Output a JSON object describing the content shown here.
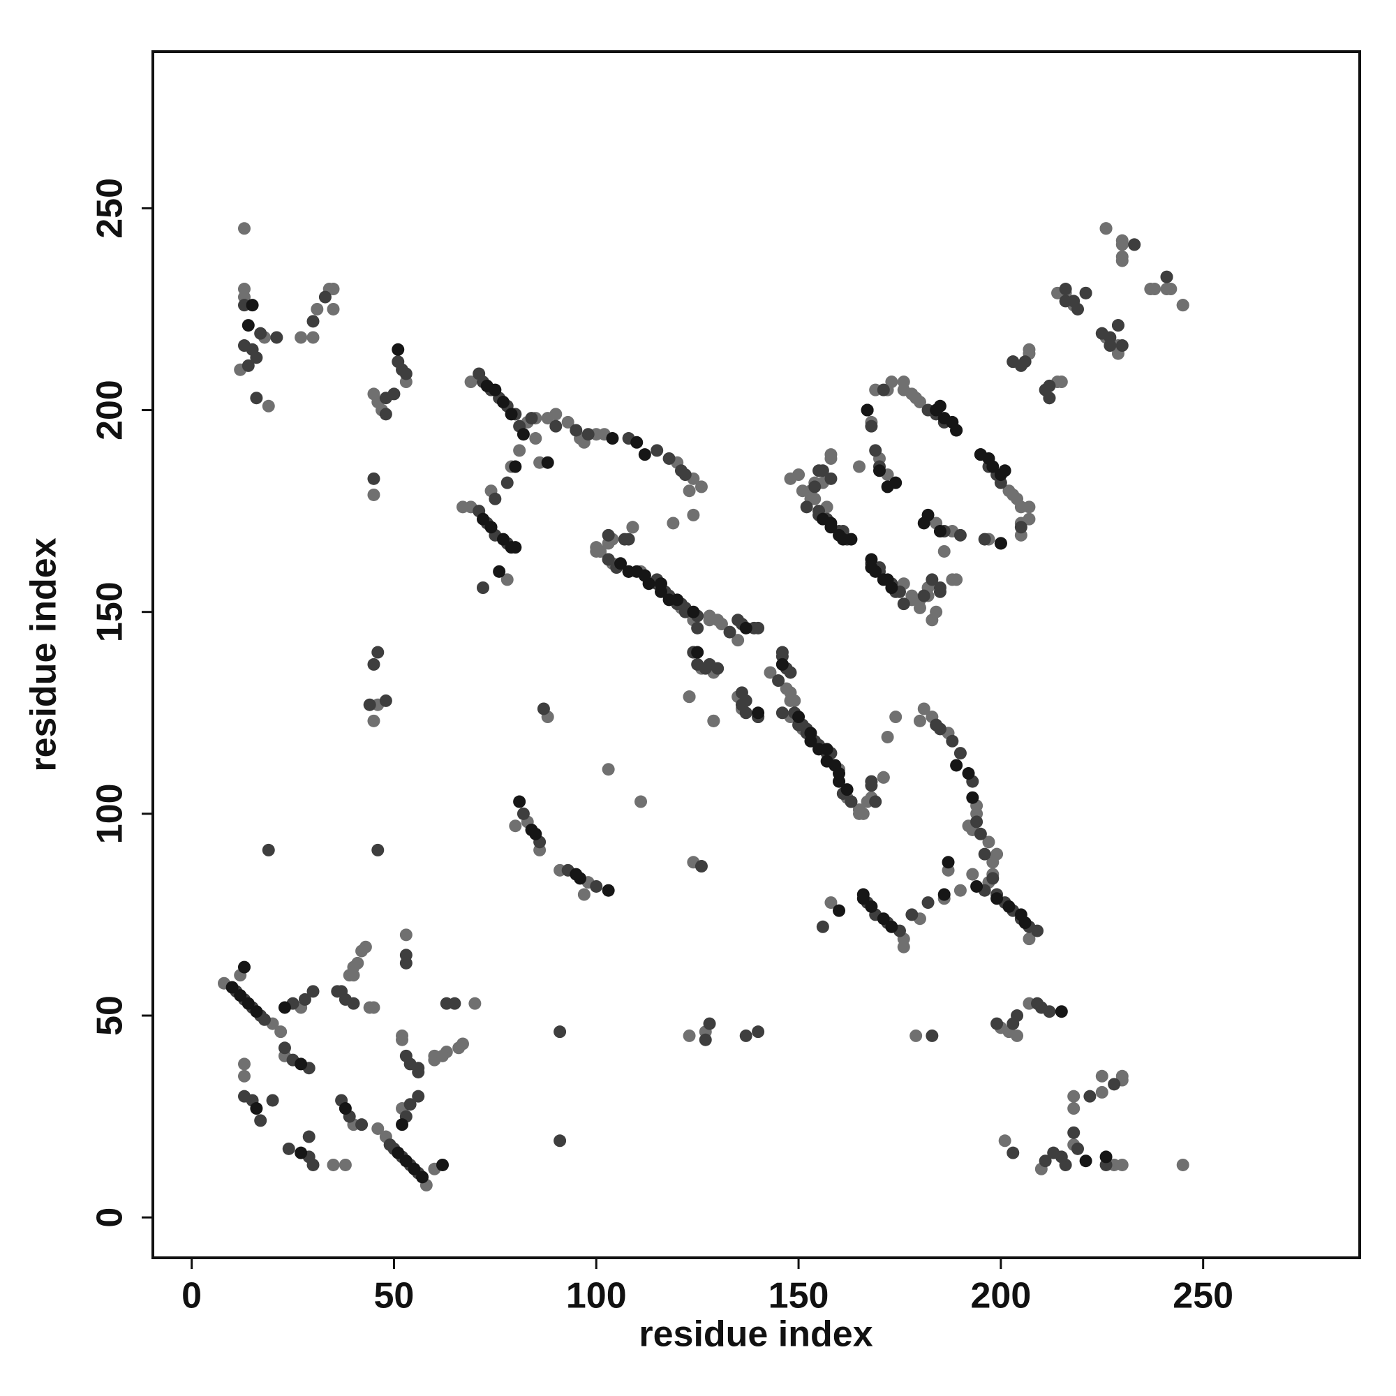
{
  "chart_data": {
    "type": "scatter",
    "xlabel": "residue index",
    "ylabel": "residue index",
    "xlim": [
      -9.6,
      288.7
    ],
    "ylim": [
      -10,
      288.8
    ],
    "xticks": [
      0,
      50,
      100,
      150,
      200,
      250
    ],
    "yticks": [
      0,
      50,
      100,
      150,
      200,
      250
    ],
    "series": [
      {
        "color": "#707070",
        "x": [
          13,
          13,
          13,
          12,
          18,
          19,
          27,
          30,
          31,
          34,
          35,
          35,
          53,
          46,
          45,
          47,
          45,
          69,
          83,
          85,
          88,
          90,
          93,
          96,
          100,
          102,
          120,
          124,
          126,
          123,
          85,
          86,
          81,
          97,
          124,
          67,
          69,
          74,
          79,
          78,
          100,
          101,
          104,
          128,
          130,
          135,
          126,
          123,
          129,
          135,
          147,
          149,
          148,
          151,
          160,
          165,
          165,
          167,
          171,
          172,
          104,
          109,
          103,
          150,
          156,
          158,
          153,
          157,
          165,
          168,
          169,
          173,
          176,
          178,
          180,
          178,
          180,
          182,
          180,
          183,
          188,
          184,
          188,
          203,
          205,
          205,
          207,
          212,
          214,
          216,
          221,
          226,
          229,
          226,
          230,
          230,
          233,
          238,
          242,
          245,
          45,
          88,
          46,
          8,
          20,
          22,
          23,
          27,
          12,
          13,
          13,
          39,
          41,
          43,
          45,
          44,
          40,
          42,
          53,
          80,
          86,
          83,
          40,
          245,
          230,
          228,
          210,
          218,
          201,
          218,
          218,
          225,
          230,
          230,
          225,
          207,
          202,
          204,
          200,
          179,
          207,
          197,
          198,
          198,
          199,
          197,
          193,
          194,
          194,
          187,
          183,
          181,
          180,
          193,
          187,
          190,
          192,
          174,
          176,
          176,
          180,
          186,
          158,
          166,
          165,
          162,
          148,
          148,
          143,
          136,
          129,
          123,
          129,
          131,
          128,
          124,
          121,
          111,
          101,
          100,
          103,
          109,
          119,
          168,
          171,
          111,
          184,
          182,
          189,
          178,
          176,
          186,
          197,
          205,
          207,
          207,
          204,
          202,
          154,
          153,
          154,
          151,
          148,
          158,
          172,
          170,
          179,
          176,
          172,
          215,
          203,
          207,
          229,
          229,
          218,
          214,
          245,
          241,
          237,
          241,
          230,
          230,
          226,
          123,
          124,
          127,
          58,
          48,
          46,
          40,
          52,
          60,
          38,
          35,
          60,
          63,
          67,
          52,
          52,
          60,
          66,
          70,
          97,
          91,
          98,
          62
        ],
        "y": [
          245,
          230,
          228,
          210,
          218,
          201,
          218,
          218,
          225,
          230,
          230,
          225,
          207,
          202,
          204,
          200,
          179,
          207,
          197,
          198,
          198,
          199,
          197,
          193,
          194,
          194,
          187,
          183,
          181,
          180,
          193,
          187,
          190,
          192,
          174,
          176,
          176,
          180,
          186,
          158,
          166,
          165,
          162,
          148,
          148,
          143,
          136,
          129,
          123,
          129,
          131,
          128,
          124,
          121,
          111,
          101,
          100,
          103,
          109,
          119,
          168,
          171,
          111,
          184,
          182,
          189,
          178,
          176,
          186,
          197,
          205,
          207,
          207,
          204,
          202,
          154,
          153,
          154,
          151,
          148,
          158,
          172,
          170,
          179,
          176,
          172,
          215,
          203,
          207,
          229,
          229,
          218,
          214,
          245,
          241,
          237,
          241,
          230,
          230,
          226,
          123,
          124,
          127,
          58,
          48,
          46,
          40,
          52,
          60,
          38,
          35,
          60,
          63,
          67,
          52,
          52,
          60,
          66,
          70,
          97,
          91,
          98,
          62,
          13,
          13,
          13,
          12,
          18,
          19,
          27,
          30,
          31,
          34,
          35,
          35,
          53,
          46,
          45,
          47,
          45,
          69,
          83,
          85,
          88,
          90,
          93,
          96,
          100,
          102,
          120,
          124,
          126,
          123,
          85,
          86,
          81,
          97,
          124,
          67,
          69,
          74,
          79,
          78,
          100,
          101,
          104,
          128,
          130,
          135,
          126,
          123,
          129,
          135,
          147,
          149,
          148,
          151,
          160,
          165,
          165,
          167,
          171,
          172,
          104,
          109,
          103,
          150,
          156,
          158,
          153,
          157,
          165,
          168,
          169,
          173,
          176,
          178,
          180,
          178,
          180,
          182,
          180,
          183,
          188,
          184,
          188,
          203,
          205,
          205,
          207,
          212,
          214,
          216,
          221,
          226,
          229,
          226,
          230,
          230,
          233,
          238,
          242,
          245,
          45,
          88,
          46,
          8,
          20,
          22,
          23,
          27,
          12,
          13,
          13,
          39,
          41,
          43,
          45,
          44,
          40,
          42,
          53,
          80,
          86,
          83,
          40
        ]
      },
      {
        "color": "#3e3e3e",
        "x": [
          13,
          13,
          15,
          16,
          14,
          17,
          16,
          21,
          30,
          33,
          51,
          52,
          53,
          50,
          48,
          48,
          45,
          71,
          72,
          74,
          76,
          78,
          80,
          81,
          84,
          90,
          95,
          98,
          108,
          115,
          118,
          121,
          122,
          71,
          73,
          75,
          78,
          75,
          78,
          103,
          108,
          112,
          115,
          118,
          121,
          122,
          125,
          133,
          136,
          139,
          124,
          128,
          130,
          136,
          137,
          140,
          146,
          148,
          146,
          150,
          152,
          155,
          158,
          161,
          163,
          168,
          103,
          108,
          72,
          154,
          156,
          155,
          157,
          160,
          171,
          182,
          189,
          169,
          168,
          170,
          174,
          176,
          183,
          185,
          186,
          197,
          199,
          196,
          203,
          206,
          211,
          218,
          219,
          227,
          230,
          229,
          241,
          46,
          45,
          44,
          48,
          87,
          19,
          46,
          11,
          13,
          15,
          17,
          18,
          23,
          25,
          29,
          25,
          28,
          30,
          36,
          38,
          37,
          40,
          53,
          53,
          82,
          86,
          13,
          15,
          17,
          20,
          226,
          216,
          215,
          213,
          211,
          219,
          203,
          218,
          222,
          228,
          212,
          210,
          209,
          204,
          203,
          199,
          183,
          209,
          207,
          205,
          203,
          201,
          199,
          196,
          198,
          196,
          195,
          194,
          193,
          190,
          188,
          185,
          184,
          175,
          172,
          169,
          167,
          178,
          182,
          163,
          160,
          159,
          157,
          154,
          152,
          151,
          149,
          145,
          147,
          146,
          140,
          137,
          136,
          127,
          125,
          124,
          140,
          135,
          125,
          122,
          120,
          117,
          115,
          105,
          103,
          107,
          169,
          168,
          156,
          181,
          185,
          175,
          173,
          170,
          205,
          200,
          195,
          190,
          162,
          161,
          155,
          152,
          158,
          155,
          170,
          186,
          184,
          168,
          212,
          212,
          205,
          227,
          225,
          216,
          216,
          221,
          233,
          140,
          137,
          127,
          128,
          126,
          91,
          91,
          56,
          54,
          52,
          50,
          49,
          42,
          39,
          37,
          53,
          54,
          56,
          56,
          54,
          56,
          53,
          63,
          65,
          100,
          93,
          30,
          29,
          24,
          29
        ],
        "y": [
          226,
          216,
          215,
          213,
          211,
          219,
          203,
          218,
          222,
          228,
          212,
          210,
          209,
          204,
          203,
          199,
          183,
          209,
          207,
          205,
          203,
          201,
          199,
          196,
          198,
          196,
          195,
          194,
          193,
          190,
          188,
          185,
          184,
          175,
          172,
          169,
          167,
          178,
          182,
          163,
          160,
          159,
          157,
          154,
          152,
          151,
          149,
          145,
          147,
          146,
          140,
          137,
          136,
          127,
          125,
          124,
          140,
          135,
          125,
          122,
          120,
          117,
          115,
          105,
          103,
          107,
          169,
          168,
          156,
          181,
          185,
          175,
          173,
          170,
          205,
          200,
          195,
          190,
          162,
          161,
          155,
          152,
          158,
          155,
          170,
          186,
          184,
          168,
          212,
          212,
          205,
          227,
          225,
          216,
          216,
          221,
          233,
          140,
          137,
          127,
          128,
          126,
          91,
          91,
          56,
          54,
          52,
          50,
          49,
          42,
          39,
          37,
          53,
          54,
          56,
          56,
          54,
          56,
          53,
          63,
          65,
          100,
          93,
          30,
          29,
          24,
          29,
          13,
          13,
          15,
          16,
          14,
          17,
          16,
          21,
          30,
          33,
          51,
          52,
          53,
          50,
          48,
          48,
          45,
          71,
          72,
          74,
          76,
          78,
          80,
          81,
          84,
          90,
          95,
          98,
          108,
          115,
          118,
          121,
          122,
          71,
          73,
          75,
          78,
          75,
          78,
          103,
          108,
          112,
          115,
          118,
          121,
          122,
          125,
          133,
          136,
          139,
          124,
          128,
          130,
          136,
          137,
          140,
          146,
          148,
          146,
          150,
          152,
          155,
          158,
          161,
          163,
          168,
          103,
          108,
          72,
          154,
          156,
          155,
          157,
          160,
          171,
          182,
          189,
          169,
          168,
          170,
          174,
          176,
          183,
          185,
          186,
          197,
          199,
          196,
          203,
          206,
          211,
          218,
          219,
          227,
          230,
          229,
          241,
          46,
          45,
          44,
          48,
          87,
          19,
          46,
          11,
          13,
          15,
          17,
          18,
          23,
          25,
          29,
          25,
          28,
          30,
          36,
          38,
          37,
          40,
          53,
          53,
          82,
          86,
          13,
          15,
          17,
          20
        ]
      },
      {
        "color": "#161616",
        "x": [
          51,
          15,
          14,
          73,
          75,
          77,
          79,
          82,
          104,
          110,
          112,
          72,
          74,
          77,
          79,
          80,
          106,
          110,
          113,
          116,
          120,
          124,
          125,
          153,
          157,
          159,
          160,
          167,
          170,
          172,
          184,
          186,
          188,
          169,
          171,
          173,
          158,
          161,
          163,
          195,
          201,
          200,
          182,
          88,
          80,
          76,
          146,
          10,
          12,
          14,
          16,
          23,
          27,
          81,
          84,
          85,
          13,
          16,
          215,
          226,
          221,
          206,
          205,
          202,
          199,
          194,
          193,
          192,
          189,
          173,
          171,
          168,
          166,
          166,
          162,
          160,
          157,
          155,
          153,
          150,
          140,
          118,
          116,
          112,
          108,
          200,
          185,
          181,
          200,
          198,
          197,
          160,
          158,
          156,
          172,
          168,
          168,
          189,
          185,
          167,
          174,
          187,
          186,
          160,
          137,
          57,
          55,
          53,
          51,
          52,
          38,
          103,
          96,
          95,
          62,
          27
        ],
        "y": [
          215,
          226,
          221,
          206,
          205,
          202,
          199,
          194,
          193,
          192,
          189,
          173,
          171,
          168,
          166,
          166,
          162,
          160,
          157,
          155,
          153,
          150,
          140,
          118,
          116,
          112,
          108,
          200,
          185,
          181,
          200,
          198,
          197,
          160,
          158,
          156,
          172,
          168,
          168,
          189,
          185,
          167,
          174,
          187,
          186,
          160,
          137,
          57,
          55,
          53,
          51,
          52,
          38,
          103,
          96,
          95,
          62,
          27,
          51,
          15,
          14,
          73,
          75,
          77,
          79,
          82,
          104,
          110,
          112,
          72,
          74,
          77,
          79,
          80,
          106,
          110,
          113,
          116,
          120,
          124,
          125,
          153,
          157,
          159,
          160,
          167,
          170,
          172,
          184,
          186,
          188,
          169,
          171,
          173,
          158,
          161,
          163,
          195,
          201,
          200,
          182,
          88,
          80,
          76,
          146,
          10,
          12,
          14,
          16,
          23,
          27,
          81,
          84,
          85,
          13,
          16
        ]
      }
    ]
  }
}
